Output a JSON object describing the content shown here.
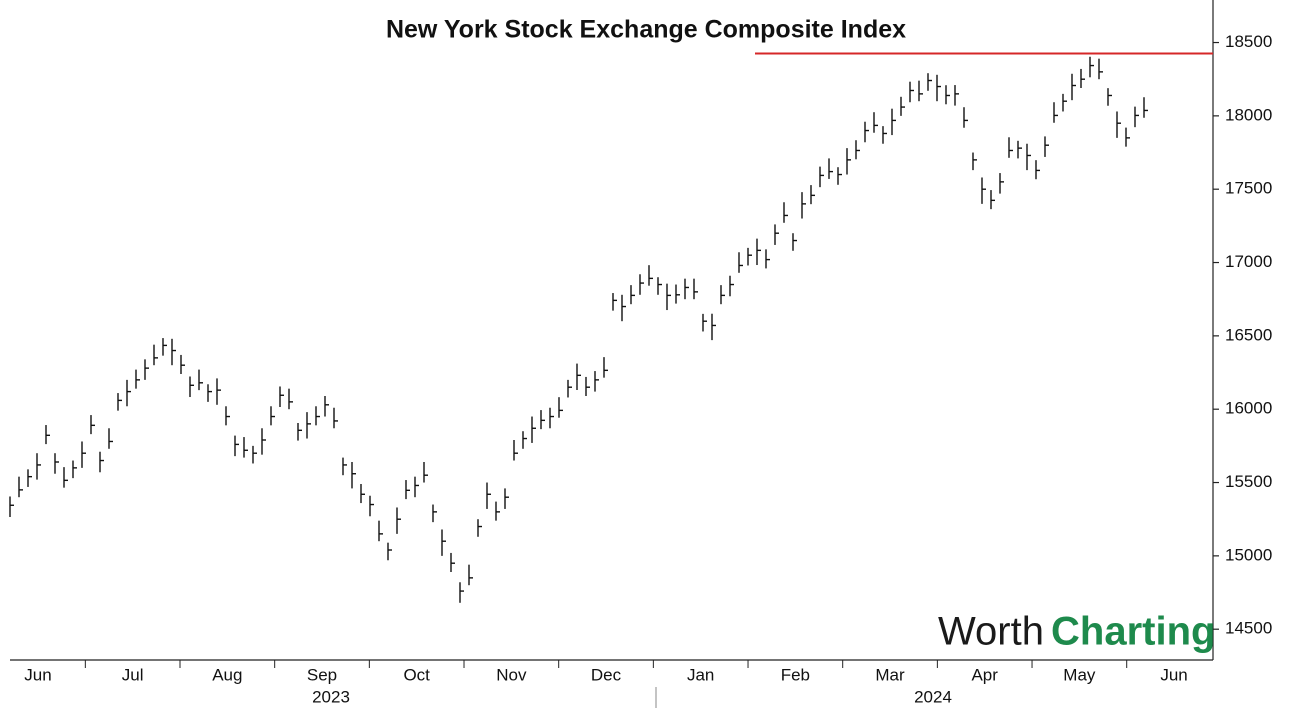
{
  "chart_data": {
    "type": "ohlc",
    "title": "New York Stock Exchange Composite Index",
    "x_tick_labels": [
      "Jun",
      "Jul",
      "Aug",
      "Sep",
      "Oct",
      "Nov",
      "Dec",
      "Jan",
      "Feb",
      "Mar",
      "Apr",
      "May",
      "Jun"
    ],
    "year_labels": [
      "2023",
      "2024"
    ],
    "ylim": [
      14290,
      18790
    ],
    "yticks": [
      14500,
      15000,
      15500,
      16000,
      16500,
      17000,
      17500,
      18000,
      18500
    ],
    "reference_line": {
      "value": 18425,
      "color": "#d62728"
    },
    "watermark": [
      "Worth",
      "Charting"
    ],
    "series": [
      {
        "color": "#111111",
        "high": [
          15405,
          15540,
          15590,
          15700,
          15892,
          15700,
          15605,
          15650,
          15780,
          15960,
          15710,
          15870,
          16110,
          16200,
          16270,
          16340,
          16440,
          16485,
          16480,
          16370,
          16223,
          16270,
          16170,
          16210,
          16020,
          15820,
          15810,
          15750,
          15870,
          16020,
          16155,
          16140,
          15906,
          15980,
          16020,
          16090,
          16010,
          15670,
          15640,
          15490,
          15410,
          15240,
          15090,
          15330,
          15517,
          15540,
          15640,
          15350,
          15180,
          15020,
          14820,
          14940,
          15250,
          15500,
          15370,
          15460,
          15790,
          15850,
          15950,
          15994,
          16010,
          16082,
          16200,
          16311,
          16220,
          16260,
          16355,
          16792,
          16780,
          16846,
          16920,
          16982,
          16900,
          16856,
          16850,
          16890,
          16890,
          16650,
          16651,
          16846,
          16910,
          17070,
          17100,
          17163,
          17090,
          17260,
          17411,
          17200,
          17480,
          17528,
          17654,
          17710,
          17650,
          17780,
          17834,
          17960,
          18025,
          17930,
          18049,
          18130,
          18233,
          18240,
          18291,
          18280,
          18209,
          18210,
          18059,
          17750,
          17580,
          17494,
          17610,
          17854,
          17830,
          17810,
          17698,
          17860,
          18093,
          18150,
          18287,
          18320,
          18403,
          18390,
          18189,
          18030,
          17920,
          18063,
          18127
        ],
        "low": [
          15265,
          15400,
          15470,
          15520,
          15762,
          15560,
          15465,
          15530,
          15600,
          15830,
          15570,
          15730,
          15990,
          16020,
          16140,
          16200,
          16300,
          16365,
          16300,
          16240,
          16083,
          16130,
          16050,
          16030,
          15890,
          15680,
          15670,
          15630,
          15690,
          15890,
          16015,
          16000,
          15786,
          15800,
          15890,
          15950,
          15870,
          15550,
          15460,
          15360,
          15270,
          15100,
          14970,
          15150,
          15387,
          15400,
          15500,
          15230,
          15000,
          14890,
          14680,
          14800,
          15130,
          15320,
          15240,
          15320,
          15650,
          15730,
          15770,
          15864,
          15870,
          15942,
          16080,
          16131,
          16090,
          16120,
          16215,
          16672,
          16600,
          16716,
          16780,
          16842,
          16780,
          16676,
          16720,
          16750,
          16750,
          16530,
          16471,
          16716,
          16770,
          16930,
          16980,
          16983,
          16960,
          17120,
          17271,
          17080,
          17300,
          17398,
          17514,
          17570,
          17530,
          17600,
          17704,
          17820,
          17885,
          17810,
          17869,
          18000,
          18093,
          18100,
          18171,
          18100,
          18079,
          18070,
          17919,
          17630,
          17400,
          17364,
          17470,
          17714,
          17710,
          17630,
          17568,
          17720,
          17953,
          18030,
          18107,
          18190,
          18263,
          18250,
          18069,
          17850,
          17790,
          17923,
          17987
        ],
        "close": [
          15345,
          15450,
          15540,
          15620,
          15822,
          15640,
          15515,
          15600,
          15700,
          15890,
          15650,
          15780,
          16060,
          16120,
          16200,
          16280,
          16350,
          16435,
          16400,
          16300,
          16163,
          16180,
          16120,
          16130,
          15950,
          15760,
          15720,
          15700,
          15790,
          15950,
          16095,
          16050,
          15856,
          15900,
          15950,
          16030,
          15920,
          15620,
          15560,
          15420,
          15350,
          15150,
          15040,
          15250,
          15447,
          15480,
          15550,
          15300,
          15100,
          14950,
          14760,
          14850,
          15200,
          15420,
          15300,
          15400,
          15700,
          15800,
          15870,
          15924,
          15950,
          15992,
          16150,
          16231,
          16150,
          16200,
          16265,
          16742,
          16700,
          16776,
          16860,
          16892,
          16850,
          16776,
          16780,
          16830,
          16800,
          16600,
          16571,
          16776,
          16850,
          16980,
          17050,
          17083,
          17020,
          17200,
          17321,
          17150,
          17400,
          17458,
          17594,
          17620,
          17600,
          17700,
          17764,
          17900,
          17935,
          17880,
          17969,
          18060,
          18173,
          18150,
          18241,
          18200,
          18139,
          18150,
          17969,
          17700,
          17500,
          17424,
          17550,
          17764,
          17780,
          17730,
          17628,
          17800,
          18003,
          18100,
          18207,
          18250,
          18343,
          18300,
          18139,
          17950,
          17850,
          18003,
          18037
        ]
      }
    ]
  }
}
